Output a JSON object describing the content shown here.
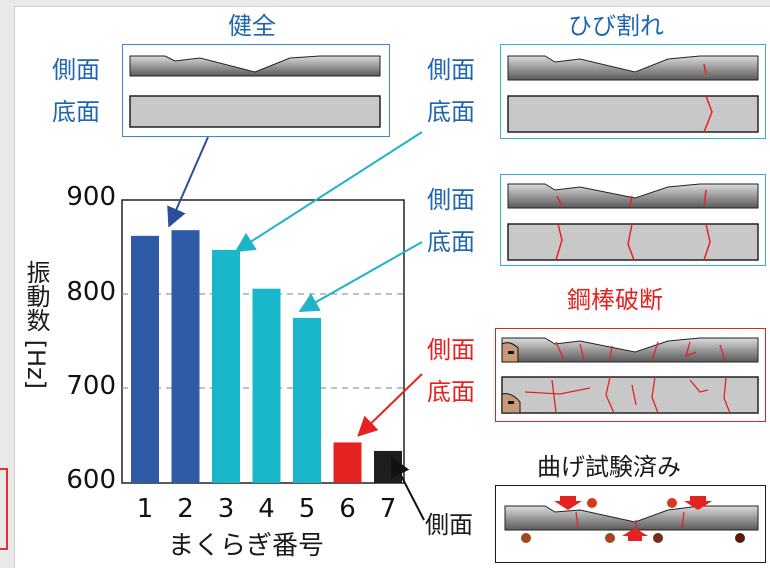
{
  "colors": {
    "healthy": "#2e5aa6",
    "cracked": "#18b6c8",
    "broken": "#e42320",
    "tested": "#1e1e1e",
    "label_blue": "#1f66b1",
    "label_red": "#e42320"
  },
  "labels": {
    "healthy_title": "健全",
    "crack_title": "ひび割れ",
    "broken_title": "鋼棒破断",
    "bend_title": "曲げ試験済み",
    "side": "側面",
    "bottom": "底面"
  },
  "chart_data": {
    "type": "bar",
    "categories": [
      "1",
      "2",
      "3",
      "4",
      "5",
      "6",
      "7"
    ],
    "values": [
      862,
      868,
      847,
      806,
      775,
      643,
      634
    ],
    "bar_colors": [
      "#2e5aa6",
      "#2e5aa6",
      "#18b6c8",
      "#18b6c8",
      "#18b6c8",
      "#e42320",
      "#1e1e1e"
    ],
    "ylim": [
      600,
      900
    ],
    "yticks": [
      "600",
      "700",
      "800",
      "900"
    ],
    "ylabel": "振動数 [Hz]",
    "xlabel": "まくらぎ番号",
    "grid_y": [
      700,
      800
    ]
  }
}
